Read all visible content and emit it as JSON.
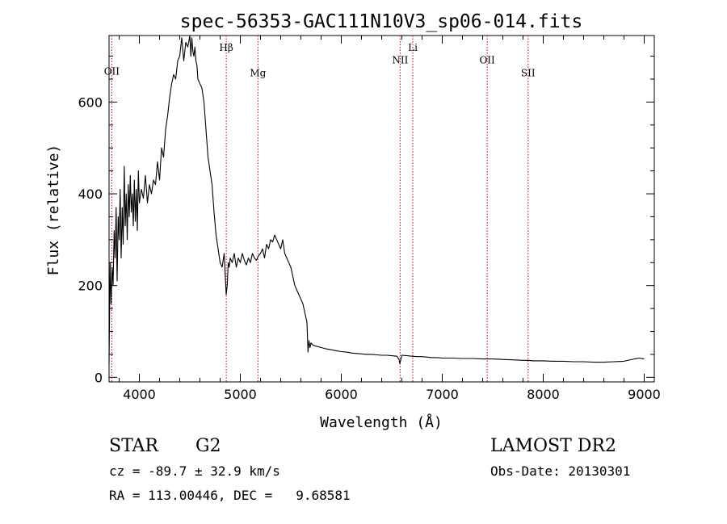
{
  "chart_data": {
    "type": "line",
    "title": "spec-56353-GAC111N10V3_sp06-014.fits",
    "xlabel": "Wavelength (Å)",
    "ylabel": "Flux (relative)",
    "xlim": [
      3700,
      9100
    ],
    "ylim": [
      -10,
      745
    ],
    "x_ticks": [
      4000,
      5000,
      6000,
      7000,
      8000,
      9000
    ],
    "y_ticks": [
      0,
      200,
      400,
      600
    ],
    "line_color": "#000000",
    "marker_color": "#cc0000",
    "series": [
      {
        "x": [
          3700,
          3710,
          3720,
          3730,
          3740,
          3750,
          3760,
          3770,
          3780,
          3790,
          3800,
          3810,
          3820,
          3830,
          3840,
          3850,
          3860,
          3870,
          3880,
          3890,
          3900,
          3910,
          3920,
          3930,
          3940,
          3950,
          3960,
          3970,
          3980,
          3990,
          4000,
          4020,
          4040,
          4060,
          4080,
          4100,
          4120,
          4140,
          4160,
          4180,
          4200,
          4220,
          4240,
          4260,
          4280,
          4300,
          4320,
          4340,
          4360,
          4380,
          4400,
          4420,
          4440,
          4460,
          4480,
          4500,
          4510,
          4520,
          4530,
          4540,
          4550,
          4560,
          4570,
          4580,
          4600,
          4620,
          4640,
          4660,
          4680,
          4700,
          4720,
          4740,
          4760,
          4780,
          4800,
          4820,
          4840,
          4860,
          4870,
          4880,
          4890,
          4900,
          4920,
          4940,
          4960,
          4980,
          5000,
          5020,
          5040,
          5060,
          5080,
          5100,
          5120,
          5140,
          5160,
          5180,
          5200,
          5220,
          5240,
          5260,
          5280,
          5300,
          5320,
          5340,
          5360,
          5380,
          5400,
          5420,
          5440,
          5460,
          5480,
          5500,
          5520,
          5540,
          5560,
          5580,
          5600,
          5620,
          5640,
          5660,
          5670,
          5680,
          5690,
          5700,
          5720,
          5750,
          5800,
          5850,
          5900,
          5950,
          6000,
          6050,
          6100,
          6150,
          6200,
          6250,
          6300,
          6350,
          6400,
          6450,
          6500,
          6550,
          6570,
          6580,
          6600,
          6650,
          6700,
          6750,
          6800,
          6850,
          6900,
          6950,
          7000,
          7100,
          7200,
          7300,
          7400,
          7450,
          7500,
          7600,
          7700,
          7800,
          7850,
          7900,
          8000,
          8100,
          8200,
          8300,
          8400,
          8500,
          8600,
          8700,
          8800,
          8900,
          8950,
          9000
        ],
        "y": [
          30,
          250,
          160,
          240,
          200,
          320,
          260,
          370,
          210,
          350,
          300,
          410,
          260,
          370,
          290,
          460,
          330,
          400,
          300,
          420,
          350,
          440,
          360,
          400,
          330,
          430,
          340,
          410,
          320,
          450,
          380,
          410,
          390,
          440,
          380,
          420,
          400,
          430,
          420,
          470,
          430,
          500,
          480,
          540,
          570,
          610,
          640,
          660,
          650,
          690,
          700,
          740,
          690,
          730,
          720,
          760,
          700,
          740,
          710,
          700,
          720,
          690,
          680,
          650,
          640,
          630,
          600,
          540,
          480,
          450,
          420,
          360,
          310,
          280,
          250,
          240,
          270,
          180,
          200,
          250,
          240,
          260,
          250,
          270,
          240,
          260,
          250,
          270,
          255,
          245,
          260,
          250,
          270,
          260,
          255,
          265,
          270,
          280,
          260,
          290,
          280,
          300,
          295,
          310,
          300,
          290,
          280,
          300,
          270,
          260,
          250,
          240,
          220,
          200,
          190,
          180,
          170,
          160,
          140,
          120,
          55,
          80,
          65,
          75,
          70,
          68,
          65,
          62,
          60,
          58,
          56,
          55,
          53,
          52,
          51,
          50,
          50,
          49,
          48,
          48,
          47,
          46,
          40,
          30,
          48,
          47,
          46,
          45,
          45,
          44,
          43,
          43,
          42,
          42,
          41,
          41,
          40,
          40,
          40,
          39,
          38,
          37,
          37,
          36,
          36,
          35,
          35,
          34,
          34,
          33,
          33,
          34,
          35,
          40,
          42,
          40
        ]
      }
    ],
    "markers": [
      {
        "label": "OII",
        "x": 3727,
        "label_y": 660
      },
      {
        "label": "Hβ",
        "x": 4861,
        "label_y": 712
      },
      {
        "label": "Mg",
        "x": 5175,
        "label_y": 656
      },
      {
        "label": "NII",
        "x": 6583,
        "label_y": 684
      },
      {
        "label": "Li",
        "x": 6708,
        "label_y": 712
      },
      {
        "label": "OII",
        "x": 7445,
        "label_y": 684
      },
      {
        "label": "SII",
        "x": 7850,
        "label_y": 656
      }
    ]
  },
  "footer": {
    "object_type": "STAR",
    "subclass": "G2",
    "survey": "LAMOST DR2",
    "redshift_line": "cz = -89.7 ± 32.9 km/s",
    "obs_date_line": "Obs-Date: 20130301",
    "coords_line": "RA = 113.00446, DEC =   9.68581"
  }
}
